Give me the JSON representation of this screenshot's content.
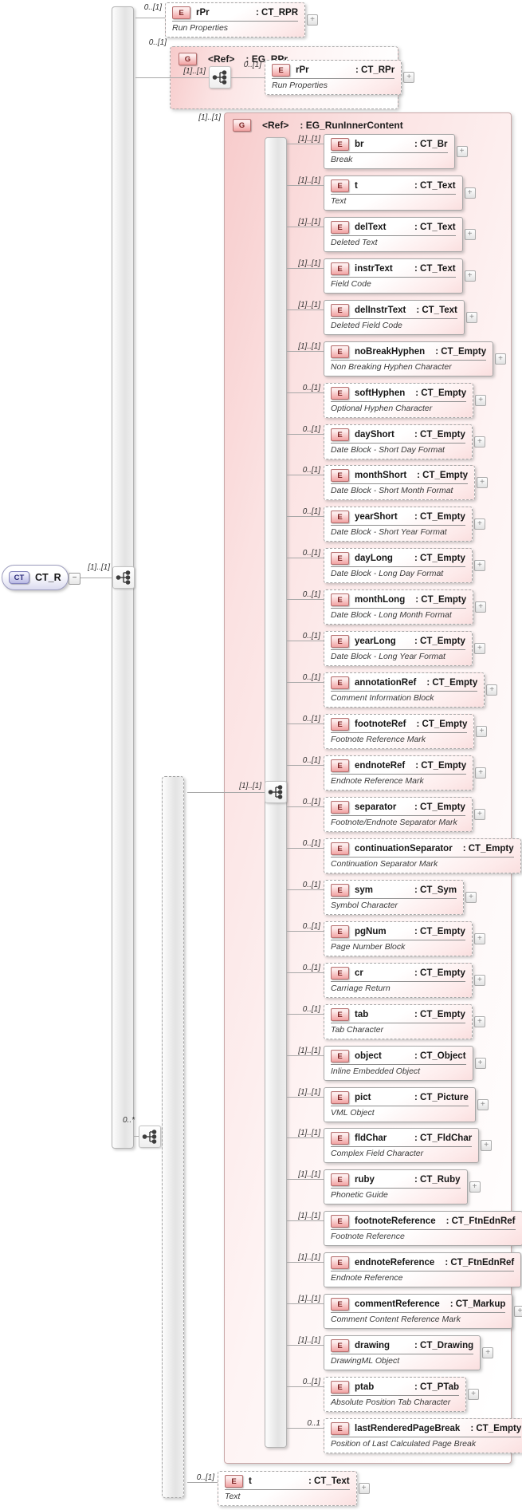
{
  "glyphs": {
    "expand": "+",
    "collapse": "−"
  },
  "colors": {
    "element_accent": "#f2a2a2",
    "type_accent": "#b9b9e4",
    "group_fill": "#f7cbcb"
  },
  "root": {
    "badge": "CT",
    "label": "CT_R",
    "cardinality_to_content": "[1]..[1]"
  },
  "run_properties_element": {
    "badge": "E",
    "cardinality": "0..[1]",
    "name": "rPr",
    "type": ": CT_RPR",
    "annotation": "Run Properties"
  },
  "eg_rpr_group": {
    "badge": "G",
    "cardinality": "0..[1]",
    "name": "<Ref>",
    "type": ": EG_RPr",
    "sequence_cardinality": "[1]..[1]",
    "child": {
      "badge": "E",
      "cardinality": "0..[1]",
      "name": "rPr",
      "type": ": CT_RPr",
      "annotation": "Run Properties"
    }
  },
  "inner_sequence": {
    "cardinality": "0..*"
  },
  "run_inner_content_group": {
    "badge": "G",
    "cardinality": "[1]..[1]",
    "name": "<Ref>",
    "type": ": EG_RunInnerContent",
    "choice_cardinality": "[1]..[1]",
    "elements": [
      {
        "name": "br",
        "type": ": CT_Br",
        "annotation": "Break",
        "cardinality": "[1]..[1]"
      },
      {
        "name": "t",
        "type": ": CT_Text",
        "annotation": "Text",
        "cardinality": "[1]..[1]"
      },
      {
        "name": "delText",
        "type": ": CT_Text",
        "annotation": "Deleted Text",
        "cardinality": "[1]..[1]"
      },
      {
        "name": "instrText",
        "type": ": CT_Text",
        "annotation": "Field Code",
        "cardinality": "[1]..[1]"
      },
      {
        "name": "delInstrText",
        "type": ": CT_Text",
        "annotation": "Deleted Field Code",
        "cardinality": "[1]..[1]"
      },
      {
        "name": "noBreakHyphen",
        "type": ": CT_Empty",
        "annotation": "Non Breaking Hyphen Character",
        "cardinality": "[1]..[1]"
      },
      {
        "name": "softHyphen",
        "type": ": CT_Empty",
        "annotation": "Optional Hyphen Character",
        "cardinality": "0..[1]"
      },
      {
        "name": "dayShort",
        "type": ": CT_Empty",
        "annotation": "Date Block - Short Day Format",
        "cardinality": "0..[1]"
      },
      {
        "name": "monthShort",
        "type": ": CT_Empty",
        "annotation": "Date Block - Short Month Format",
        "cardinality": "0..[1]"
      },
      {
        "name": "yearShort",
        "type": ": CT_Empty",
        "annotation": "Date Block - Short Year Format",
        "cardinality": "0..[1]"
      },
      {
        "name": "dayLong",
        "type": ": CT_Empty",
        "annotation": "Date Block - Long Day Format",
        "cardinality": "0..[1]"
      },
      {
        "name": "monthLong",
        "type": ": CT_Empty",
        "annotation": "Date Block - Long Month Format",
        "cardinality": "0..[1]"
      },
      {
        "name": "yearLong",
        "type": ": CT_Empty",
        "annotation": "Date Block - Long Year Format",
        "cardinality": "0..[1]"
      },
      {
        "name": "annotationRef",
        "type": ": CT_Empty",
        "annotation": "Comment Information Block",
        "cardinality": "0..[1]"
      },
      {
        "name": "footnoteRef",
        "type": ": CT_Empty",
        "annotation": "Footnote Reference Mark",
        "cardinality": "0..[1]"
      },
      {
        "name": "endnoteRef",
        "type": ": CT_Empty",
        "annotation": "Endnote Reference Mark",
        "cardinality": "0..[1]"
      },
      {
        "name": "separator",
        "type": ": CT_Empty",
        "annotation": "Footnote/Endnote Separator Mark",
        "cardinality": "0..[1]"
      },
      {
        "name": "continuationSeparator",
        "type": ": CT_Empty",
        "annotation": "Continuation Separator Mark",
        "cardinality": "0..[1]"
      },
      {
        "name": "sym",
        "type": ": CT_Sym",
        "annotation": "Symbol Character",
        "cardinality": "0..[1]"
      },
      {
        "name": "pgNum",
        "type": ": CT_Empty",
        "annotation": "Page Number Block",
        "cardinality": "0..[1]"
      },
      {
        "name": "cr",
        "type": ": CT_Empty",
        "annotation": "Carriage Return",
        "cardinality": "0..[1]"
      },
      {
        "name": "tab",
        "type": ": CT_Empty",
        "annotation": "Tab Character",
        "cardinality": "0..[1]"
      },
      {
        "name": "object",
        "type": ": CT_Object",
        "annotation": "Inline Embedded Object",
        "cardinality": "[1]..[1]"
      },
      {
        "name": "pict",
        "type": ": CT_Picture",
        "annotation": "VML Object",
        "cardinality": "[1]..[1]"
      },
      {
        "name": "fldChar",
        "type": ": CT_FldChar",
        "annotation": "Complex Field Character",
        "cardinality": "[1]..[1]"
      },
      {
        "name": "ruby",
        "type": ": CT_Ruby",
        "annotation": "Phonetic Guide",
        "cardinality": "[1]..[1]"
      },
      {
        "name": "footnoteReference",
        "type": ": CT_FtnEdnRef",
        "annotation": "Footnote Reference",
        "cardinality": "[1]..[1]"
      },
      {
        "name": "endnoteReference",
        "type": ": CT_FtnEdnRef",
        "annotation": "Endnote Reference",
        "cardinality": "[1]..[1]"
      },
      {
        "name": "commentReference",
        "type": ": CT_Markup",
        "annotation": "Comment Content Reference Mark",
        "cardinality": "[1]..[1]"
      },
      {
        "name": "drawing",
        "type": ": CT_Drawing",
        "annotation": "DrawingML Object",
        "cardinality": "[1]..[1]"
      },
      {
        "name": "ptab",
        "type": ": CT_PTab",
        "annotation": "Absolute Position Tab Character",
        "cardinality": "0..[1]"
      },
      {
        "name": "lastRenderedPageBreak",
        "type": ": CT_Empty",
        "annotation": "Position of Last Calculated Page Break",
        "cardinality": "0..1"
      }
    ]
  },
  "text_element": {
    "badge": "E",
    "cardinality": "0..[1]",
    "name": "t",
    "type": ": CT_Text",
    "annotation": "Text"
  }
}
